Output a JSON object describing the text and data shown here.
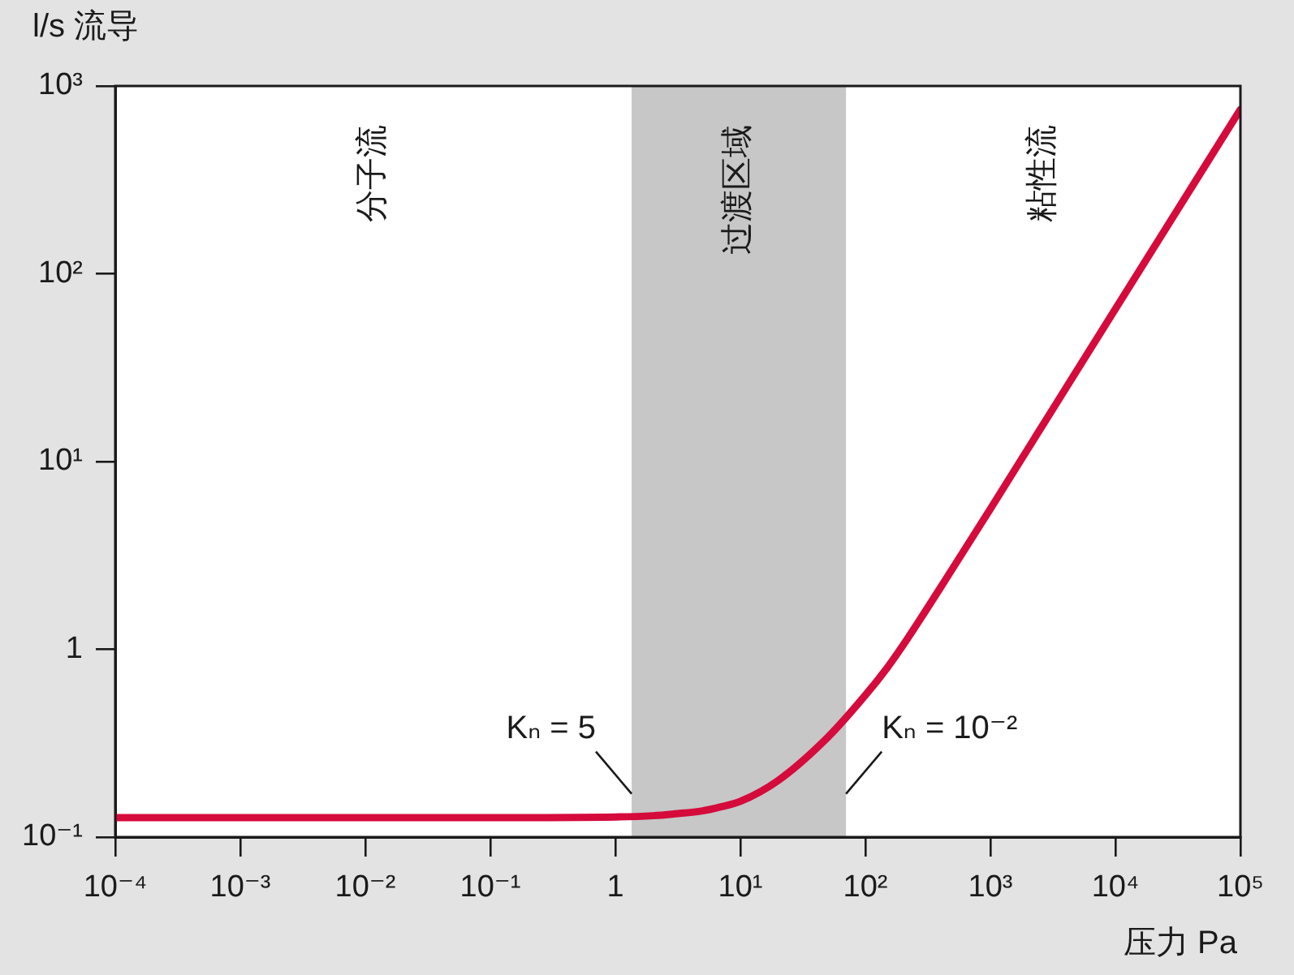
{
  "chart_data": {
    "type": "line",
    "xlabel": "压力 Pa",
    "ylabel": "l/s 流导",
    "x": [
      0.0001,
      0.001,
      0.01,
      0.1,
      1,
      2,
      3,
      5,
      7,
      10,
      20,
      50,
      100,
      150,
      200,
      500,
      1000,
      10000,
      100000
    ],
    "series": [
      {
        "color": "#d50b3c",
        "values": [
          0.127,
          0.127,
          0.127,
          0.127,
          0.128,
          0.13,
          0.133,
          0.138,
          0.145,
          0.155,
          0.2,
          0.34,
          0.57,
          0.8,
          1.05,
          2.7,
          5.6,
          65,
          750
        ]
      }
    ],
    "log": "xy",
    "xlim": [
      0.0001,
      100000
    ],
    "ylim": [
      0.1,
      1000
    ],
    "xticks": [
      {
        "value": 0.0001,
        "label": "10⁻⁴"
      },
      {
        "value": 0.001,
        "label": "10⁻³"
      },
      {
        "value": 0.01,
        "label": "10⁻²"
      },
      {
        "value": 0.1,
        "label": "10⁻¹"
      },
      1,
      {
        "value": 10,
        "label": "10¹"
      },
      {
        "value": 100,
        "label": "10²"
      },
      {
        "value": 1000,
        "label": "10³"
      },
      {
        "value": 10000,
        "label": "10⁴"
      },
      {
        "value": 100000,
        "label": "10⁵"
      }
    ],
    "yticks": [
      {
        "value": 0.1,
        "label": "10⁻¹"
      },
      1,
      {
        "value": 10,
        "label": "10¹"
      },
      {
        "value": 100,
        "label": "10²"
      },
      {
        "value": 1000,
        "label": "10³"
      }
    ],
    "bands": [
      {
        "axis": "x",
        "from": 1.35,
        "to": 70,
        "label": "过渡区域",
        "color": "#c6c7c6"
      }
    ],
    "annotations": [
      "分子流",
      "粘性流",
      {
        "text": "Kₙ = 5",
        "x": 1.35,
        "y": 0.17
      },
      {
        "text": "Kₙ = 10⁻²",
        "x": 70,
        "y": 0.17
      }
    ],
    "line_style": "solid"
  }
}
